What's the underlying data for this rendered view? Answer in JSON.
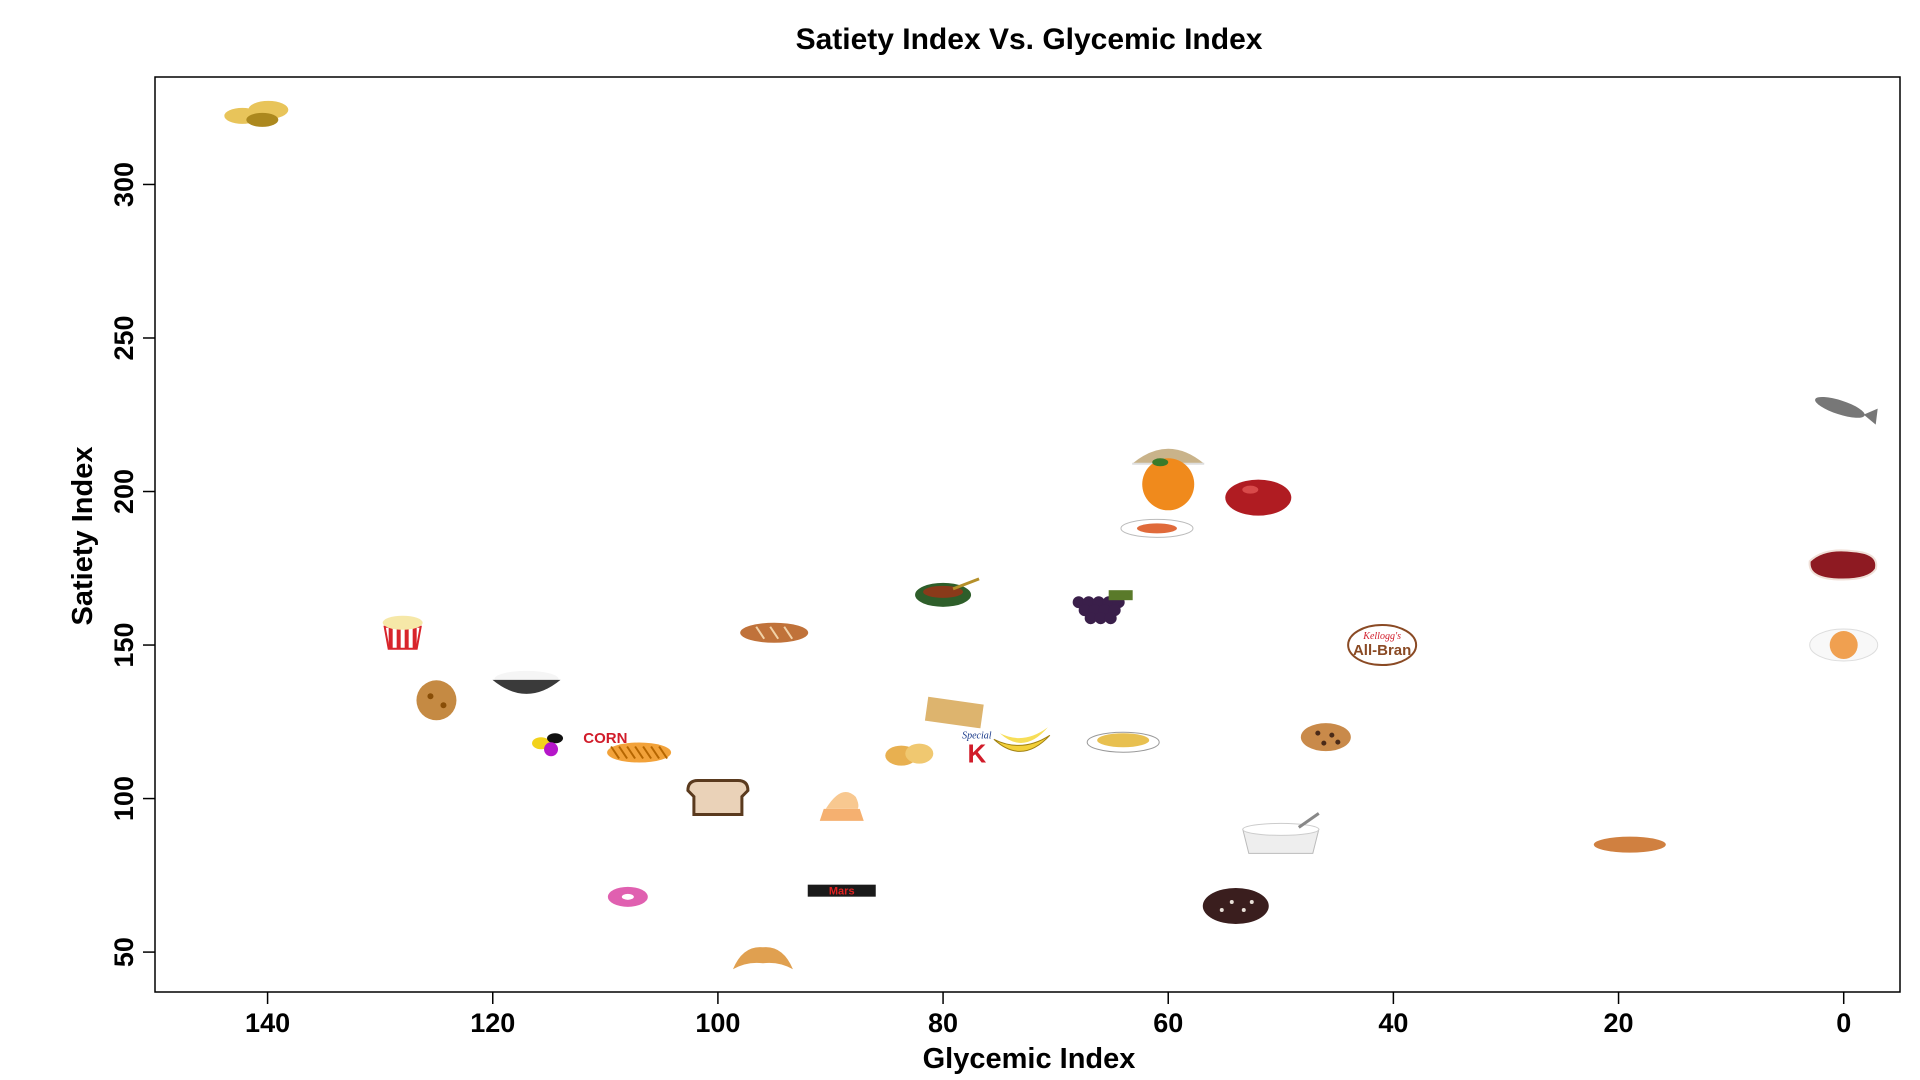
{
  "chart_data": {
    "type": "scatter",
    "title": "Satiety Index Vs. Glycemic Index",
    "xlabel": "Glycemic Index",
    "ylabel": "Satiety Index",
    "xlim": [
      150,
      -5
    ],
    "ylim": [
      37,
      335
    ],
    "x_ticks": [
      140,
      120,
      100,
      80,
      60,
      40,
      20,
      0
    ],
    "y_ticks": [
      50,
      100,
      150,
      200,
      250,
      300
    ],
    "x_reversed": true,
    "grid": false,
    "legend": "none",
    "points": [
      {
        "x": 141,
        "y": 323,
        "icon": "potato-icon",
        "color": "#e8c45a"
      },
      {
        "x": 128,
        "y": 154,
        "icon": "popcorn-icon",
        "color": "#d8242b"
      },
      {
        "x": 125,
        "y": 132,
        "icon": "cracker-icon",
        "color": "#c58a43"
      },
      {
        "x": 117,
        "y": 138,
        "icon": "rice-bowl-icon",
        "color": "#3a3a3a"
      },
      {
        "x": 115,
        "y": 118,
        "icon": "jellybeans-icon",
        "color": "#b516c9"
      },
      {
        "x": 110,
        "y": 120,
        "icon": "cornflakes-icon",
        "color": "#d11c2a",
        "label": "CORN"
      },
      {
        "x": 107,
        "y": 115,
        "icon": "fries-icon",
        "color": "#f2a23a"
      },
      {
        "x": 100,
        "y": 100,
        "icon": "bread-icon",
        "color": "#ead2b8"
      },
      {
        "x": 108,
        "y": 68,
        "icon": "donut-icon",
        "color": "#e060b0"
      },
      {
        "x": 95,
        "y": 154,
        "icon": "bread-loaf-icon",
        "color": "#c0723a"
      },
      {
        "x": 96,
        "y": 47,
        "icon": "croissant-icon",
        "color": "#e0a050"
      },
      {
        "x": 89,
        "y": 96,
        "icon": "ice-cream-icon",
        "color": "#f5b070"
      },
      {
        "x": 89,
        "y": 70,
        "icon": "candy-bar-icon",
        "color": "#1a1a1a",
        "label": "Mars"
      },
      {
        "x": 80,
        "y": 167,
        "icon": "lentil-bowl-icon",
        "color": "#2e5e2a"
      },
      {
        "x": 79,
        "y": 128,
        "icon": "water-cracker-icon",
        "color": "#ddb46e"
      },
      {
        "x": 83,
        "y": 114,
        "icon": "chips-icon",
        "color": "#e8b050"
      },
      {
        "x": 77,
        "y": 117,
        "icon": "special-k-icon",
        "color": "#d11c2a",
        "label": "Special"
      },
      {
        "x": 73,
        "y": 118,
        "icon": "banana-icon",
        "color": "#f3d03a"
      },
      {
        "x": 66,
        "y": 162,
        "icon": "grapes-icon",
        "color": "#3a1f4a"
      },
      {
        "x": 64,
        "y": 119,
        "icon": "pasta-icon",
        "color": "#e8c050"
      },
      {
        "x": 60,
        "y": 211,
        "icon": "oats-icon",
        "color": "#c9b38a"
      },
      {
        "x": 60,
        "y": 203,
        "icon": "orange-icon",
        "color": "#f08a1c"
      },
      {
        "x": 61,
        "y": 188,
        "icon": "beans-plate-icon",
        "color": "#e06a3a"
      },
      {
        "x": 52,
        "y": 198,
        "icon": "apple-icon",
        "color": "#b01c22"
      },
      {
        "x": 54,
        "y": 65,
        "icon": "cake-icon",
        "color": "#3a1e1e"
      },
      {
        "x": 50,
        "y": 88,
        "icon": "yogurt-icon",
        "color": "#eeeeee"
      },
      {
        "x": 46,
        "y": 120,
        "icon": "cookie-icon",
        "color": "#c98a4a"
      },
      {
        "x": 41,
        "y": 150,
        "icon": "all-bran-icon",
        "color": "#8a4a24",
        "label": "All-Bran"
      },
      {
        "x": 19,
        "y": 85,
        "icon": "lentils-icon",
        "color": "#d08040"
      },
      {
        "x": 0,
        "y": 227,
        "icon": "fish-icon",
        "color": "#777777"
      },
      {
        "x": 0,
        "y": 176,
        "icon": "steak-icon",
        "color": "#8e1a22"
      },
      {
        "x": 0,
        "y": 150,
        "icon": "egg-icon",
        "color": "#f0a050"
      }
    ]
  }
}
